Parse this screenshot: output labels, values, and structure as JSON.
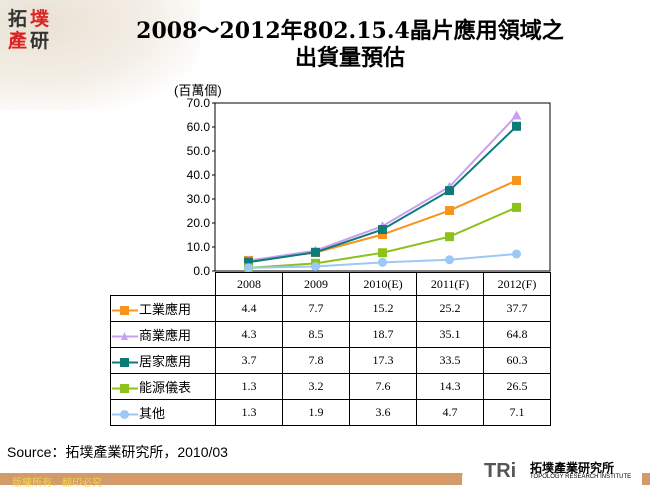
{
  "logo": {
    "chars": [
      "拓",
      "墣",
      "產",
      "研"
    ]
  },
  "title": {
    "line1": "2008～2012年802.15.4晶片應用領域之",
    "line2": "出貨量預估"
  },
  "chart_data": {
    "type": "line",
    "ylabel": "(百萬個)",
    "ylim": [
      0,
      70
    ],
    "yticks": [
      "0.0",
      "10.0",
      "20.0",
      "30.0",
      "40.0",
      "50.0",
      "60.0",
      "70.0"
    ],
    "categories": [
      "2008",
      "2009",
      "2010(E)",
      "2011(F)",
      "2012(F)"
    ],
    "grid": false,
    "legend": "data-table",
    "series": [
      {
        "name": "工業應用",
        "color": "#f7941d",
        "marker": "square",
        "values": [
          4.4,
          7.7,
          15.2,
          25.2,
          37.7
        ]
      },
      {
        "name": "商業應用",
        "color": "#c9a0f0",
        "marker": "triangle",
        "values": [
          4.3,
          8.5,
          18.7,
          35.1,
          64.8
        ]
      },
      {
        "name": "居家應用",
        "color": "#0e7b78",
        "marker": "square",
        "values": [
          3.7,
          7.8,
          17.3,
          33.5,
          60.3
        ]
      },
      {
        "name": "能源儀表",
        "color": "#8cc21a",
        "marker": "square",
        "values": [
          1.3,
          3.2,
          7.6,
          14.3,
          26.5
        ]
      },
      {
        "name": "其他",
        "color": "#9cc8f5",
        "marker": "circle",
        "values": [
          1.3,
          1.9,
          3.6,
          4.7,
          7.1
        ]
      }
    ]
  },
  "source": "Source：拓墣產業研究所，2010/03",
  "footer": {
    "copyright": "版權所有．翻印必究",
    "org_name": "拓墣產業研究所",
    "org_en": "TOPOLOGY RESEARCH INSTITUTE",
    "org_abbr": "TRi"
  }
}
